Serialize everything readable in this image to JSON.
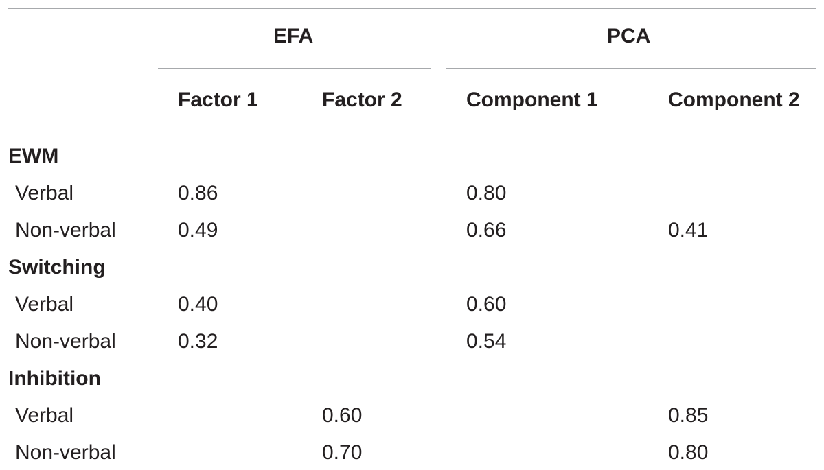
{
  "groups": {
    "efa": "EFA",
    "pca": "PCA"
  },
  "columns": [
    "Factor 1",
    "Factor 2",
    "Component 1",
    "Component 2"
  ],
  "sections": [
    {
      "name": "EWM",
      "rows": [
        {
          "label": "Verbal",
          "values": [
            "0.86",
            "",
            "0.80",
            ""
          ]
        },
        {
          "label": "Non-verbal",
          "values": [
            "0.49",
            "",
            "0.66",
            "0.41"
          ]
        }
      ]
    },
    {
      "name": "Switching",
      "rows": [
        {
          "label": "Verbal",
          "values": [
            "0.40",
            "",
            "0.60",
            ""
          ]
        },
        {
          "label": "Non-verbal",
          "values": [
            "0.32",
            "",
            "0.54",
            ""
          ]
        }
      ]
    },
    {
      "name": "Inhibition",
      "rows": [
        {
          "label": "Verbal",
          "values": [
            "",
            "0.60",
            "",
            "0.85"
          ]
        },
        {
          "label": "Non-verbal",
          "values": [
            "",
            "0.70",
            "",
            "0.80"
          ]
        }
      ]
    }
  ]
}
